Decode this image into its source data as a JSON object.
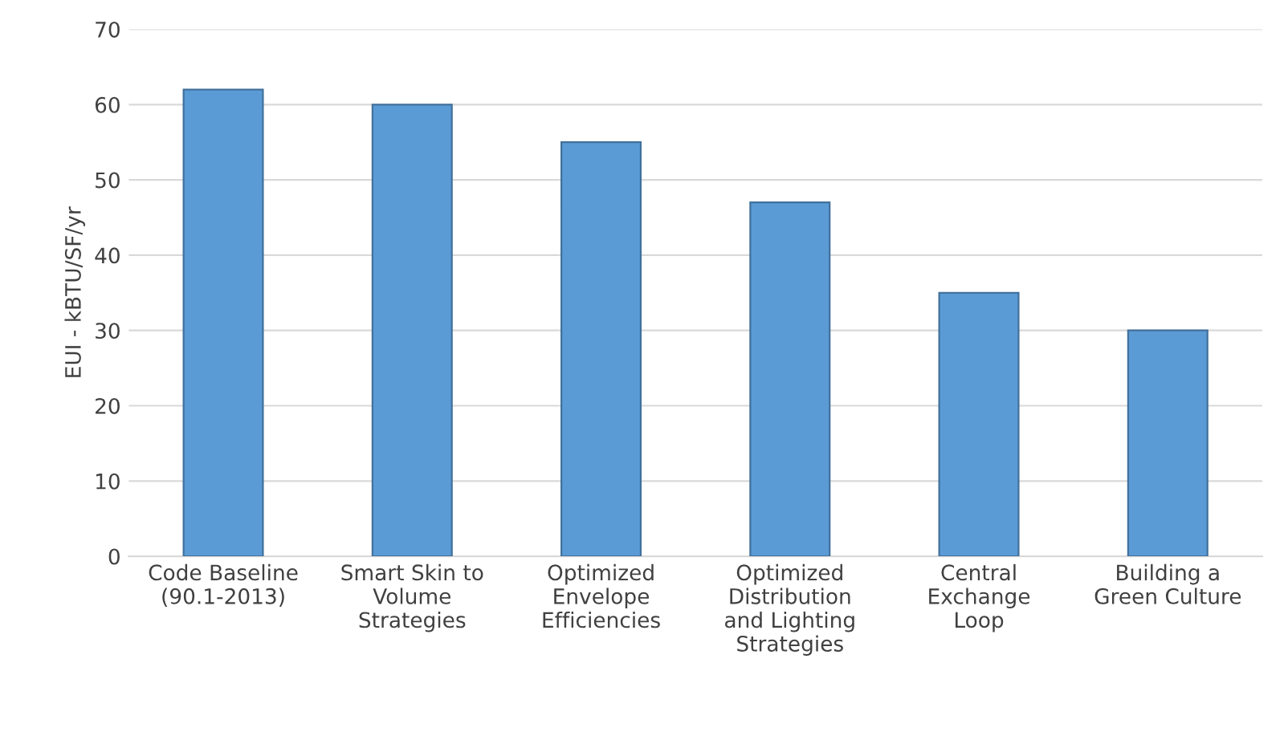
{
  "chart_data": {
    "type": "bar",
    "ylabel": "EUI - kBTU/SF/yr",
    "categories": [
      "Code Baseline\n(90.1-2013)",
      "Smart Skin to\nVolume\nStrategies",
      "Optimized\nEnvelope\nEfficiencies",
      "Optimized\nDistribution\nand Lighting\nStrategies",
      "Central\nExchange\nLoop",
      "Building a\nGreen Culture"
    ],
    "values": [
      62,
      60,
      55,
      47,
      35,
      30
    ],
    "color": "#5b9bd5",
    "ylim": [
      0,
      70
    ],
    "yticks": [
      0,
      10,
      20,
      30,
      40,
      50,
      60,
      70
    ],
    "grid": "y"
  }
}
